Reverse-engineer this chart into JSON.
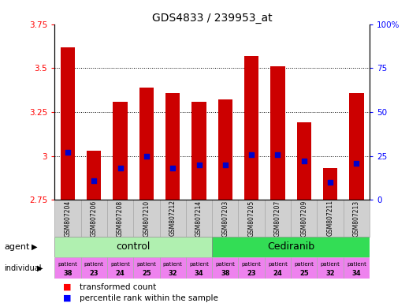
{
  "title": "GDS4833 / 239953_at",
  "samples": [
    "GSM807204",
    "GSM807206",
    "GSM807208",
    "GSM807210",
    "GSM807212",
    "GSM807214",
    "GSM807203",
    "GSM807205",
    "GSM807207",
    "GSM807209",
    "GSM807211",
    "GSM807213"
  ],
  "transformed_count": [
    3.62,
    3.03,
    3.31,
    3.39,
    3.36,
    3.31,
    3.32,
    3.57,
    3.51,
    3.19,
    2.93,
    3.36
  ],
  "percentile_rank": [
    27,
    11,
    18,
    25,
    18,
    20,
    20,
    26,
    26,
    22,
    10,
    21
  ],
  "bar_bottom": 2.75,
  "ylim_left": [
    2.75,
    3.75
  ],
  "ylim_right": [
    0,
    100
  ],
  "yticks_left": [
    2.75,
    3.0,
    3.25,
    3.5,
    3.75
  ],
  "ytick_labels_left": [
    "2.75",
    "3",
    "3.25",
    "3.5",
    "3.75"
  ],
  "yticks_right": [
    0,
    25,
    50,
    75,
    100
  ],
  "ytick_labels_right": [
    "0",
    "25",
    "50",
    "75",
    "100%"
  ],
  "grid_lines": [
    3.0,
    3.25,
    3.5
  ],
  "individual_labels": [
    "38",
    "23",
    "24",
    "25",
    "32",
    "34",
    "38",
    "23",
    "24",
    "25",
    "32",
    "34"
  ],
  "control_color": "#b0f0b0",
  "cediranib_color": "#33dd55",
  "individual_color": "#ee82ee",
  "bar_color": "#cc0000",
  "percentile_color": "#0000cc",
  "xlab_bg": "#d0d0d0",
  "background_color": "#ffffff",
  "title_fontsize": 10,
  "tick_fontsize": 7.5,
  "agent_fontsize": 9,
  "indiv_fontsize": 5.5,
  "legend_fontsize": 7.5
}
